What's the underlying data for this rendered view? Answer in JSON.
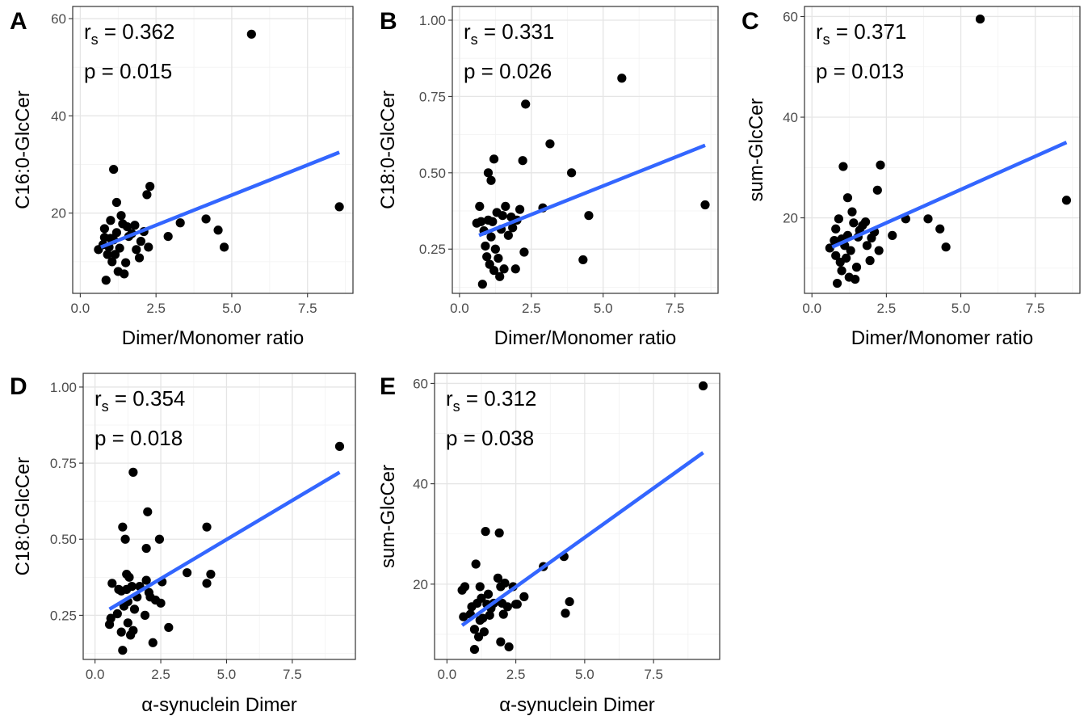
{
  "chart_data": [
    {
      "panel": "A",
      "type": "scatter",
      "xlabel": "Dimer/Monomer ratio",
      "ylabel": "C16:0-GlcCer",
      "xlim": [
        -0.25,
        9.0
      ],
      "ylim": [
        3.5,
        62.5
      ],
      "xticks": [
        0,
        2.5,
        5,
        7.5
      ],
      "xtick_labels": [
        "0.0",
        "2.5",
        "5.0",
        "7.5"
      ],
      "yticks": [
        20,
        40,
        60
      ],
      "ytick_labels": [
        "20",
        "40",
        "60"
      ],
      "stat_rs": "0.362",
      "stat_p": "p = 0.015",
      "fit_line": {
        "x": [
          0.68,
          8.55
        ],
        "y": [
          13.0,
          32.5
        ]
      },
      "points": [
        [
          0.6,
          12.5
        ],
        [
          0.75,
          13.5
        ],
        [
          0.8,
          15.0
        ],
        [
          0.8,
          16.8
        ],
        [
          0.85,
          6.2
        ],
        [
          0.9,
          11.5
        ],
        [
          0.95,
          13.0
        ],
        [
          1.0,
          14.8
        ],
        [
          1.0,
          18.5
        ],
        [
          1.05,
          10.0
        ],
        [
          1.1,
          14.5
        ],
        [
          1.1,
          29.0
        ],
        [
          1.15,
          11.5
        ],
        [
          1.2,
          16.0
        ],
        [
          1.2,
          22.2
        ],
        [
          1.25,
          8.0
        ],
        [
          1.3,
          12.8
        ],
        [
          1.35,
          19.5
        ],
        [
          1.4,
          17.8
        ],
        [
          1.45,
          7.5
        ],
        [
          1.5,
          9.8
        ],
        [
          1.55,
          17.2
        ],
        [
          1.6,
          15.2
        ],
        [
          1.7,
          15.8
        ],
        [
          1.8,
          17.5
        ],
        [
          1.85,
          12.5
        ],
        [
          1.95,
          10.8
        ],
        [
          2.0,
          14.2
        ],
        [
          2.1,
          16.2
        ],
        [
          2.2,
          23.8
        ],
        [
          2.25,
          13.0
        ],
        [
          2.3,
          25.5
        ],
        [
          2.9,
          15.2
        ],
        [
          3.3,
          18.0
        ],
        [
          4.15,
          18.8
        ],
        [
          4.55,
          16.5
        ],
        [
          4.75,
          13.0
        ],
        [
          5.65,
          56.8
        ],
        [
          8.55,
          21.3
        ]
      ]
    },
    {
      "panel": "B",
      "type": "scatter",
      "xlabel": "Dimer/Monomer ratio",
      "ylabel": "C18:0-GlcCer",
      "xlim": [
        -0.25,
        9.0
      ],
      "ylim": [
        0.105,
        1.045
      ],
      "xticks": [
        0,
        2.5,
        5,
        7.5
      ],
      "xtick_labels": [
        "0.0",
        "2.5",
        "5.0",
        "7.5"
      ],
      "yticks": [
        0.25,
        0.5,
        0.75,
        1.0
      ],
      "ytick_labels": [
        "0.25",
        "0.50",
        "0.75",
        "1.00"
      ],
      "stat_rs": "0.331",
      "stat_p": "p = 0.026",
      "fit_line": {
        "x": [
          0.68,
          8.55
        ],
        "y": [
          0.295,
          0.59
        ]
      },
      "points": [
        [
          0.6,
          0.335
        ],
        [
          0.7,
          0.39
        ],
        [
          0.75,
          0.34
        ],
        [
          0.8,
          0.135
        ],
        [
          0.85,
          0.31
        ],
        [
          0.9,
          0.26
        ],
        [
          0.95,
          0.225
        ],
        [
          1.0,
          0.345
        ],
        [
          1.0,
          0.5
        ],
        [
          1.05,
          0.2
        ],
        [
          1.1,
          0.29
        ],
        [
          1.1,
          0.475
        ],
        [
          1.15,
          0.34
        ],
        [
          1.2,
          0.18
        ],
        [
          1.2,
          0.545
        ],
        [
          1.25,
          0.25
        ],
        [
          1.3,
          0.37
        ],
        [
          1.35,
          0.22
        ],
        [
          1.4,
          0.16
        ],
        [
          1.45,
          0.315
        ],
        [
          1.5,
          0.36
        ],
        [
          1.55,
          0.185
        ],
        [
          1.6,
          0.39
        ],
        [
          1.7,
          0.295
        ],
        [
          1.8,
          0.355
        ],
        [
          1.85,
          0.32
        ],
        [
          1.95,
          0.185
        ],
        [
          2.0,
          0.345
        ],
        [
          2.1,
          0.38
        ],
        [
          2.2,
          0.54
        ],
        [
          2.25,
          0.24
        ],
        [
          2.3,
          0.725
        ],
        [
          2.9,
          0.385
        ],
        [
          3.15,
          0.595
        ],
        [
          3.9,
          0.5
        ],
        [
          4.3,
          0.215
        ],
        [
          4.5,
          0.36
        ],
        [
          5.65,
          0.81
        ],
        [
          8.55,
          0.395
        ]
      ]
    },
    {
      "panel": "C",
      "type": "scatter",
      "xlabel": "Dimer/Monomer ratio",
      "ylabel": "sum-GlcCer",
      "xlim": [
        -0.25,
        9.0
      ],
      "ylim": [
        5.0,
        62.0
      ],
      "xticks": [
        0,
        2.5,
        5,
        7.5
      ],
      "xtick_labels": [
        "0.0",
        "2.5",
        "5.0",
        "7.5"
      ],
      "yticks": [
        20,
        40,
        60
      ],
      "ytick_labels": [
        "20",
        "40",
        "60"
      ],
      "stat_rs": "0.371",
      "stat_p": "p = 0.013",
      "fit_line": {
        "x": [
          0.68,
          8.55
        ],
        "y": [
          14.2,
          35.0
        ]
      },
      "points": [
        [
          0.6,
          14.0
        ],
        [
          0.75,
          15.5
        ],
        [
          0.8,
          17.8
        ],
        [
          0.8,
          12.5
        ],
        [
          0.85,
          7.0
        ],
        [
          0.9,
          19.8
        ],
        [
          0.95,
          11.2
        ],
        [
          1.0,
          15.8
        ],
        [
          1.0,
          9.5
        ],
        [
          1.05,
          30.2
        ],
        [
          1.1,
          14.5
        ],
        [
          1.15,
          12.0
        ],
        [
          1.2,
          16.5
        ],
        [
          1.2,
          24.0
        ],
        [
          1.25,
          8.2
        ],
        [
          1.3,
          13.5
        ],
        [
          1.35,
          21.2
        ],
        [
          1.4,
          19.0
        ],
        [
          1.45,
          7.8
        ],
        [
          1.5,
          10.2
        ],
        [
          1.55,
          16.2
        ],
        [
          1.6,
          17.5
        ],
        [
          1.7,
          18.5
        ],
        [
          1.8,
          19.2
        ],
        [
          1.85,
          14.5
        ],
        [
          1.95,
          11.5
        ],
        [
          2.0,
          16.0
        ],
        [
          2.1,
          17.2
        ],
        [
          2.2,
          25.5
        ],
        [
          2.25,
          13.5
        ],
        [
          2.3,
          30.5
        ],
        [
          2.7,
          16.5
        ],
        [
          3.15,
          19.8
        ],
        [
          3.9,
          19.8
        ],
        [
          4.3,
          17.8
        ],
        [
          4.5,
          14.2
        ],
        [
          5.65,
          59.5
        ],
        [
          8.55,
          23.5
        ]
      ]
    },
    {
      "panel": "D",
      "type": "scatter",
      "xlabel": "α-synuclein Dimer",
      "ylabel": "C18:0-GlcCer",
      "xlim": [
        -0.45,
        9.9
      ],
      "ylim": [
        0.105,
        1.045
      ],
      "xticks": [
        0,
        2.5,
        5,
        7.5
      ],
      "xtick_labels": [
        "0.0",
        "2.5",
        "5.0",
        "7.5"
      ],
      "yticks": [
        0.25,
        0.5,
        0.75,
        1.0
      ],
      "ytick_labels": [
        "0.25",
        "0.50",
        "0.75",
        "1.00"
      ],
      "stat_rs": "0.354",
      "stat_p": "p = 0.018",
      "fit_line": {
        "x": [
          0.55,
          9.3
        ],
        "y": [
          0.27,
          0.72
        ]
      },
      "points": [
        [
          0.55,
          0.22
        ],
        [
          0.6,
          0.24
        ],
        [
          0.65,
          0.355
        ],
        [
          0.85,
          0.255
        ],
        [
          0.9,
          0.335
        ],
        [
          1.0,
          0.195
        ],
        [
          1.05,
          0.135
        ],
        [
          1.0,
          0.33
        ],
        [
          1.05,
          0.54
        ],
        [
          1.1,
          0.28
        ],
        [
          1.15,
          0.5
        ],
        [
          1.2,
          0.335
        ],
        [
          1.2,
          0.385
        ],
        [
          1.25,
          0.295
        ],
        [
          1.25,
          0.225
        ],
        [
          1.3,
          0.375
        ],
        [
          1.35,
          0.185
        ],
        [
          1.4,
          0.345
        ],
        [
          1.45,
          0.2
        ],
        [
          1.45,
          0.72
        ],
        [
          1.5,
          0.27
        ],
        [
          1.6,
          0.31
        ],
        [
          1.7,
          0.345
        ],
        [
          1.9,
          0.25
        ],
        [
          1.95,
          0.47
        ],
        [
          1.95,
          0.365
        ],
        [
          2.0,
          0.59
        ],
        [
          2.05,
          0.325
        ],
        [
          2.1,
          0.31
        ],
        [
          2.2,
          0.16
        ],
        [
          2.3,
          0.3
        ],
        [
          2.45,
          0.5
        ],
        [
          2.5,
          0.29
        ],
        [
          2.55,
          0.36
        ],
        [
          2.8,
          0.21
        ],
        [
          3.5,
          0.39
        ],
        [
          4.25,
          0.54
        ],
        [
          4.25,
          0.355
        ],
        [
          4.4,
          0.385
        ],
        [
          9.3,
          0.805
        ]
      ]
    },
    {
      "panel": "E",
      "type": "scatter",
      "xlabel": "α-synuclein Dimer",
      "ylabel": "sum-GlcCer",
      "xlim": [
        -0.45,
        9.9
      ],
      "ylim": [
        5.0,
        62.0
      ],
      "xticks": [
        0,
        2.5,
        5,
        7.5
      ],
      "xtick_labels": [
        "0.0",
        "2.5",
        "5.0",
        "7.5"
      ],
      "yticks": [
        20,
        40,
        60
      ],
      "ytick_labels": [
        "20",
        "40",
        "60"
      ],
      "stat_rs": "0.312",
      "stat_p": "p = 0.038",
      "fit_line": {
        "x": [
          0.55,
          9.3
        ],
        "y": [
          11.8,
          46.2
        ]
      },
      "points": [
        [
          0.55,
          18.8
        ],
        [
          0.6,
          13.5
        ],
        [
          0.65,
          19.5
        ],
        [
          0.85,
          14.0
        ],
        [
          0.9,
          15.5
        ],
        [
          1.0,
          7.0
        ],
        [
          1.0,
          11.0
        ],
        [
          1.05,
          24.0
        ],
        [
          1.1,
          16.2
        ],
        [
          1.15,
          9.5
        ],
        [
          1.2,
          19.5
        ],
        [
          1.2,
          12.8
        ],
        [
          1.25,
          17.2
        ],
        [
          1.3,
          13.2
        ],
        [
          1.35,
          10.5
        ],
        [
          1.4,
          30.5
        ],
        [
          1.45,
          16.0
        ],
        [
          1.5,
          18.0
        ],
        [
          1.55,
          13.8
        ],
        [
          1.6,
          15.2
        ],
        [
          1.7,
          16.2
        ],
        [
          1.85,
          21.2
        ],
        [
          1.9,
          30.2
        ],
        [
          1.95,
          8.5
        ],
        [
          1.95,
          19.5
        ],
        [
          2.0,
          16.2
        ],
        [
          2.05,
          14.0
        ],
        [
          2.1,
          20.2
        ],
        [
          2.2,
          15.5
        ],
        [
          2.25,
          7.5
        ],
        [
          2.4,
          19.5
        ],
        [
          2.5,
          16.0
        ],
        [
          2.55,
          16.0
        ],
        [
          2.8,
          17.5
        ],
        [
          3.5,
          23.5
        ],
        [
          4.25,
          25.5
        ],
        [
          4.3,
          14.2
        ],
        [
          4.45,
          16.5
        ],
        [
          9.3,
          59.5
        ]
      ]
    }
  ]
}
